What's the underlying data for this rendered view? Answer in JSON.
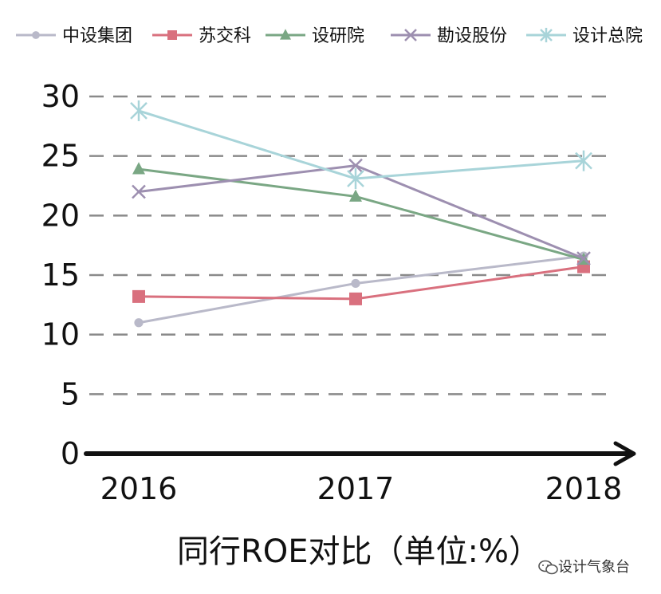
{
  "chart_data": {
    "type": "line",
    "title": "同行ROE对比（单位:%）",
    "xlabel": "",
    "ylabel": "",
    "categories": [
      "2016",
      "2017",
      "2018"
    ],
    "y_ticks": [
      "0",
      "5",
      "10",
      "15",
      "20",
      "25",
      "30"
    ],
    "ylim": [
      0,
      30
    ],
    "grid": true,
    "legend_position": "top",
    "series": [
      {
        "name": "中设集团",
        "values": [
          11.0,
          14.3,
          16.6
        ],
        "color": "#b9b9c9",
        "marker": "circle"
      },
      {
        "name": "苏交科",
        "values": [
          13.2,
          13.0,
          15.7
        ],
        "color": "#d9707e",
        "marker": "square"
      },
      {
        "name": "设研院",
        "values": [
          23.9,
          21.6,
          16.3
        ],
        "color": "#7aa784",
        "marker": "triangle"
      },
      {
        "name": "勘设股份",
        "values": [
          22.0,
          24.2,
          16.4
        ],
        "color": "#9d8fb0",
        "marker": "x"
      },
      {
        "name": "设计总院",
        "values": [
          28.8,
          23.1,
          24.6
        ],
        "color": "#a8d4d9",
        "marker": "asterisk"
      }
    ]
  },
  "watermark": {
    "icon": "wechat-icon",
    "text": "设计气象台"
  }
}
